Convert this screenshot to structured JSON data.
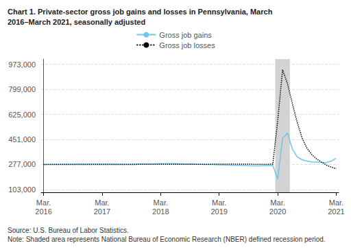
{
  "chart_data": {
    "type": "line",
    "title": "Chart 1. Private-sector gross job gains and losses in Pennsylvania, March\n2016–March 2021, seasonally adjusted",
    "annotations": [
      "Source: U.S. Bureau of Labor Statistics.",
      "Note: Shaded area represents National Bureau of Economic Research (NBER) defined recession period."
    ],
    "categories": [
      "Mar.\n2016",
      null,
      null,
      null,
      null,
      null,
      null,
      null,
      null,
      null,
      null,
      null,
      "Mar.\n2017",
      null,
      null,
      null,
      null,
      null,
      null,
      null,
      null,
      null,
      null,
      null,
      "Mar.\n2018",
      null,
      null,
      null,
      null,
      null,
      null,
      null,
      null,
      null,
      null,
      null,
      "Mar.\n2019",
      null,
      null,
      null,
      null,
      null,
      null,
      null,
      null,
      null,
      null,
      null,
      "Mar.\n2020",
      null,
      null,
      null,
      null,
      null,
      null,
      null,
      null,
      null,
      null,
      null,
      "Mar.\n2021"
    ],
    "series": [
      {
        "name": "Gross job gains",
        "color": "#6ec6e8",
        "line_style": "solid",
        "values": [
          277000,
          278000,
          278000,
          278000,
          279000,
          279000,
          279000,
          280000,
          280000,
          280000,
          280000,
          280000,
          280000,
          280000,
          280000,
          279000,
          279000,
          279000,
          279000,
          280000,
          280000,
          280000,
          281000,
          281000,
          282000,
          283000,
          283000,
          282000,
          281000,
          280000,
          280000,
          279000,
          278000,
          277000,
          276000,
          275000,
          274000,
          273000,
          272000,
          271000,
          270000,
          269000,
          268000,
          267000,
          267000,
          268000,
          269000,
          270000,
          175000,
          460000,
          495000,
          385000,
          330000,
          310000,
          300000,
          295000,
          293000,
          291000,
          290000,
          300000,
          320000
        ]
      },
      {
        "name": "Gross job losses",
        "color": "#000000",
        "line_style": "dotted",
        "values": [
          277000,
          277000,
          277000,
          276000,
          276000,
          276000,
          276000,
          276000,
          276000,
          276000,
          276000,
          276000,
          276000,
          276000,
          277000,
          277000,
          277000,
          277000,
          277000,
          277000,
          278000,
          278000,
          278000,
          278000,
          278000,
          278000,
          278000,
          278000,
          278000,
          278000,
          278000,
          278000,
          278000,
          278000,
          278000,
          279000,
          279000,
          279000,
          279000,
          279000,
          279000,
          279000,
          279000,
          278000,
          278000,
          278000,
          278000,
          279000,
          580000,
          935000,
          840000,
          700000,
          570000,
          460000,
          390000,
          345000,
          315000,
          293000,
          272000,
          258000,
          248000
        ]
      }
    ],
    "recession": {
      "start": 47.5,
      "end": 50.5,
      "color": "#d3d3d3"
    },
    "ylim": [
      83000,
      1010000
    ],
    "yticks": [
      {
        "value": 103000,
        "label": "103,000"
      },
      {
        "value": 277000,
        "label": "277,000"
      },
      {
        "value": 451000,
        "label": "451,000"
      },
      {
        "value": 625000,
        "label": "625,000"
      },
      {
        "value": 799000,
        "label": "799,000"
      },
      {
        "value": 973000,
        "label": "973,000"
      }
    ],
    "grid": true,
    "legend": "top"
  }
}
